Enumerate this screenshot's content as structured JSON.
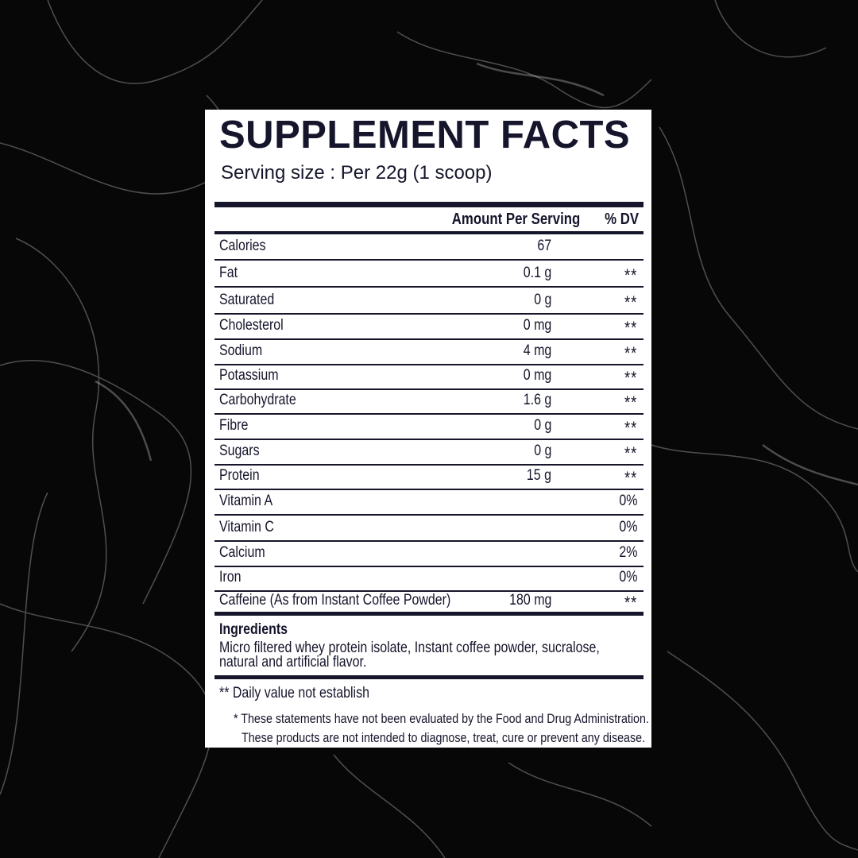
{
  "label": {
    "title": "SUPPLEMENT FACTS",
    "serving_size": "Serving size : Per 22g (1 scoop)",
    "header": {
      "amount": "Amount Per Serving",
      "dv": "% DV"
    },
    "rows": [
      {
        "name": "Calories",
        "amount": "67",
        "dv": ""
      },
      {
        "name": "Fat",
        "amount": "0.1 g",
        "dv": "**"
      },
      {
        "name": "Saturated",
        "amount": "0 g",
        "dv": "**"
      },
      {
        "name": "Cholesterol",
        "amount": "0 mg",
        "dv": "**"
      },
      {
        "name": "Sodium",
        "amount": "4 mg",
        "dv": "**"
      },
      {
        "name": "Potassium",
        "amount": "0 mg",
        "dv": "**"
      },
      {
        "name": "Carbohydrate",
        "amount": "1.6 g",
        "dv": "**"
      },
      {
        "name": "Fibre",
        "amount": "0 g",
        "dv": "**"
      },
      {
        "name": "Sugars",
        "amount": "0 g",
        "dv": "**"
      },
      {
        "name": "Protein",
        "amount": "15 g",
        "dv": "**"
      },
      {
        "name": "Vitamin A",
        "amount": "",
        "dv": "0%"
      },
      {
        "name": "Vitamin C",
        "amount": "",
        "dv": "0%"
      },
      {
        "name": "Calcium",
        "amount": "",
        "dv": "2%"
      },
      {
        "name": "Iron",
        "amount": "",
        "dv": "0%"
      },
      {
        "name": "Caffeine (As from Instant Coffee Powder)",
        "amount": "180 mg",
        "dv": "**"
      }
    ],
    "ingredients_heading": "Ingredients",
    "ingredients_text": "Micro filtered whey protein isolate, Instant coffee powder, sucralose, natural and artificial flavor.",
    "footnote_dv": "** Daily value not establish",
    "disclaimer_line1": "* These statements have not been evaluated by the Food and Drug Administration.",
    "disclaimer_line2": "These products are not intended to diagnose, treat, cure or prevent any disease."
  },
  "colors": {
    "ink": "#15152b",
    "background": "#070707",
    "panel": "#ffffff"
  }
}
